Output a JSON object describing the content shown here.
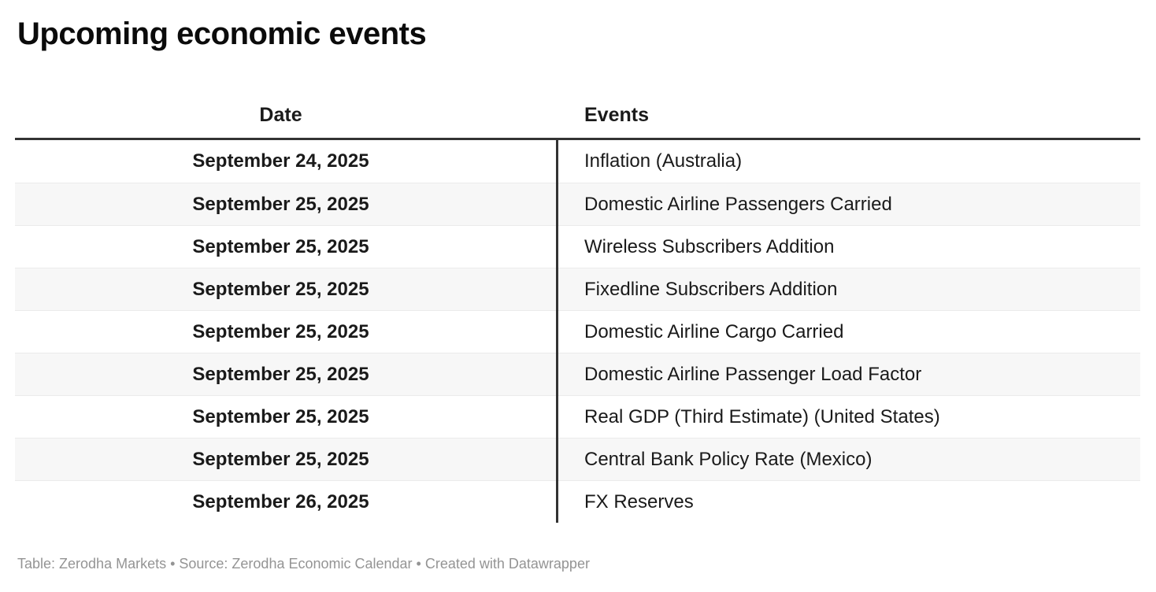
{
  "title": "Upcoming economic events",
  "table": {
    "headers": {
      "date": "Date",
      "events": "Events"
    },
    "rows": [
      {
        "date": "September 24, 2025",
        "event": "Inflation (Australia)"
      },
      {
        "date": "September 25, 2025",
        "event": "Domestic Airline Passengers Carried"
      },
      {
        "date": "September 25, 2025",
        "event": "Wireless Subscribers Addition"
      },
      {
        "date": "September 25, 2025",
        "event": "Fixedline Subscribers Addition"
      },
      {
        "date": "September 25, 2025",
        "event": "Domestic Airline Cargo Carried"
      },
      {
        "date": "September 25, 2025",
        "event": "Domestic Airline Passenger Load Factor"
      },
      {
        "date": "September 25, 2025",
        "event": "Real GDP (Third Estimate) (United States)"
      },
      {
        "date": "September 25, 2025",
        "event": "Central Bank Policy Rate (Mexico)"
      },
      {
        "date": "September 26, 2025",
        "event": "FX Reserves"
      }
    ]
  },
  "footer": {
    "text": "Table: Zerodha Markets • Source: Zerodha Economic Calendar • Created with Datawrapper"
  },
  "colors": {
    "header_rule": "#333333",
    "column_divider": "#333333",
    "row_alt_background": "#f7f7f7",
    "row_separator": "#ebebeb",
    "text": "#1a1a1a",
    "footer_text": "#949494"
  },
  "chart_data": {
    "type": "table",
    "title": "Upcoming economic events",
    "columns": [
      "Date",
      "Events"
    ],
    "rows": [
      [
        "September 24, 2025",
        "Inflation (Australia)"
      ],
      [
        "September 25, 2025",
        "Domestic Airline Passengers Carried"
      ],
      [
        "September 25, 2025",
        "Wireless Subscribers Addition"
      ],
      [
        "September 25, 2025",
        "Fixedline Subscribers Addition"
      ],
      [
        "September 25, 2025",
        "Domestic Airline Cargo Carried"
      ],
      [
        "September 25, 2025",
        "Domestic Airline Passenger Load Factor"
      ],
      [
        "September 25, 2025",
        "Real GDP (Third Estimate) (United States)"
      ],
      [
        "September 25, 2025",
        "Central Bank Policy Rate (Mexico)"
      ],
      [
        "September 26, 2025",
        "FX Reserves"
      ]
    ],
    "layout_hints": {
      "date_column_align": "center",
      "events_column_align": "left",
      "alternating_row_shading": true,
      "thick_rule_below_header": true,
      "vertical_divider_between_columns": true
    }
  }
}
